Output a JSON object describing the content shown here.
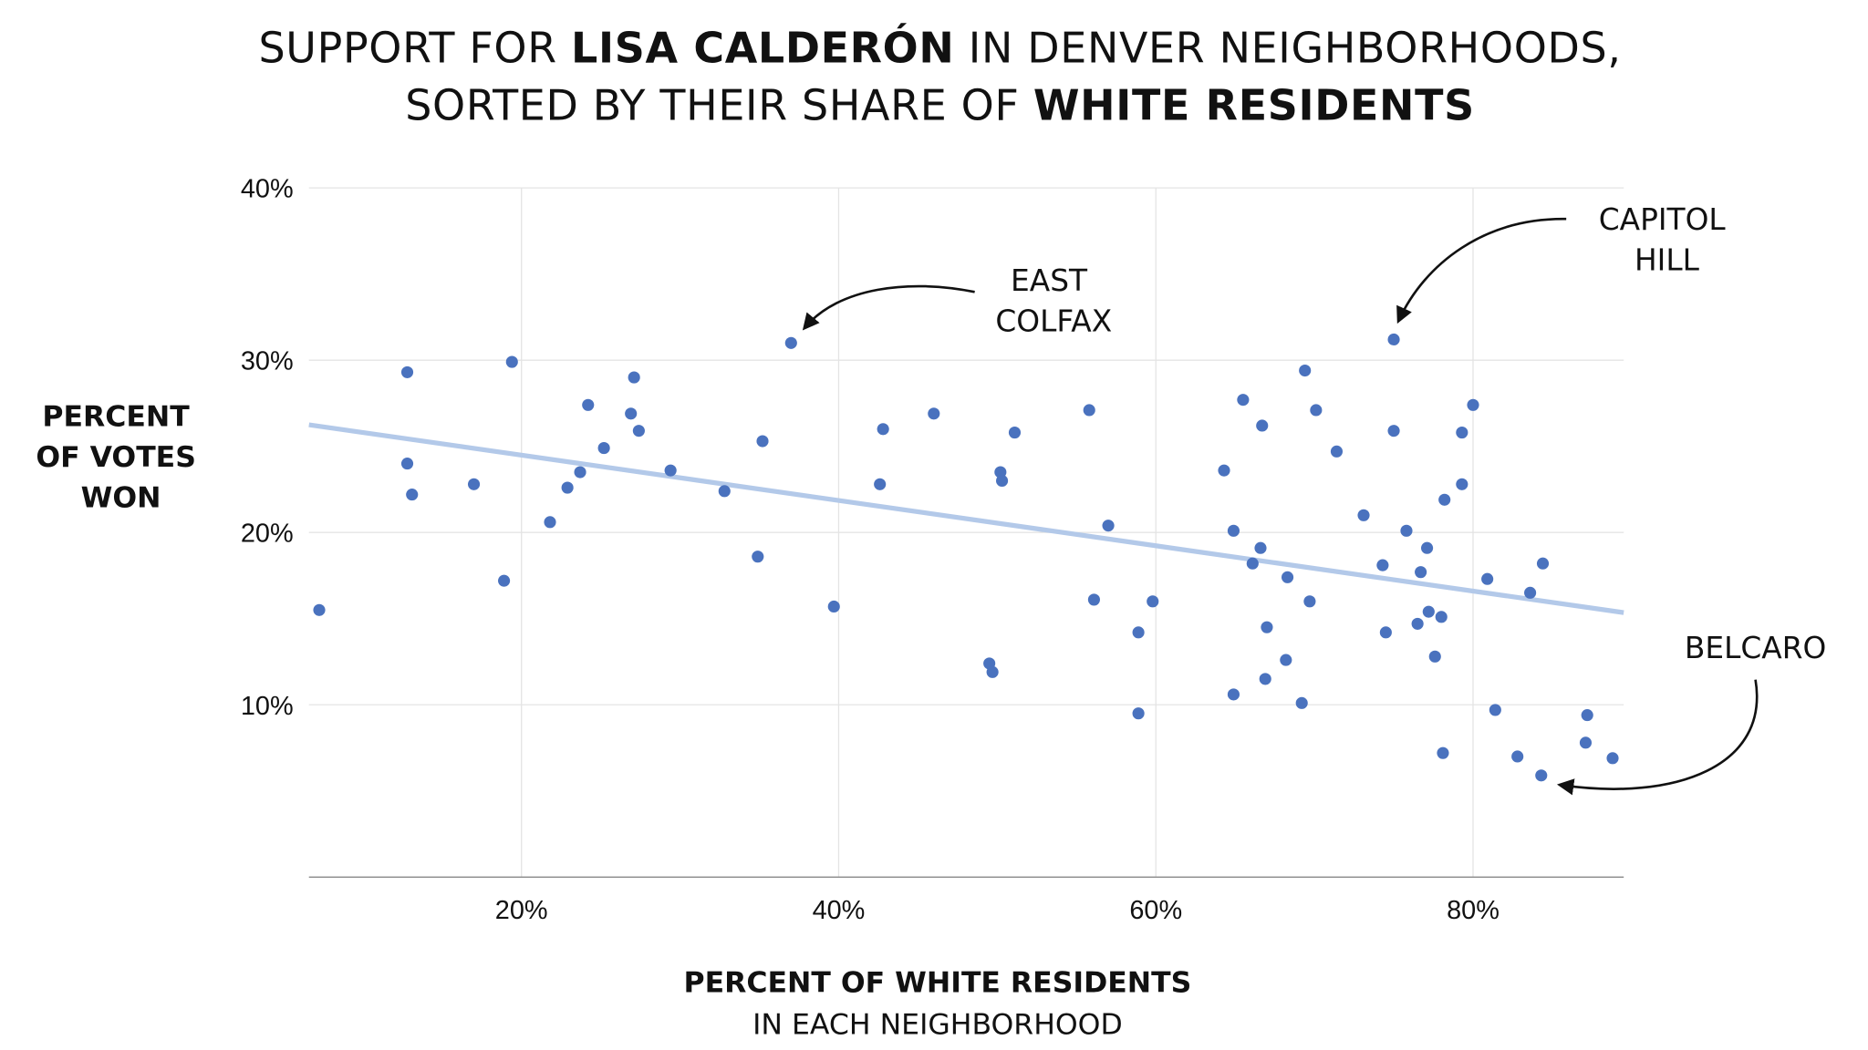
{
  "title": {
    "line1_a": "SUPPORT FOR ",
    "line1_b": "LISA CALDERÓN",
    "line1_c": " IN DENVER NEIGHBORHOODS,",
    "line2_a": "SORTED BY THEIR SHARE OF ",
    "line2_b": "WHITE RESIDENTS"
  },
  "colors": {
    "points": "#4a72be",
    "trendline": "#b3c9e9",
    "text": "#111111",
    "grid": "#e4e4e4"
  },
  "chart_data": {
    "type": "scatter",
    "title": "SUPPORT FOR LISA CALDERÓN IN DENVER NEIGHBORHOODS, SORTED BY THEIR SHARE OF WHITE RESIDENTS",
    "xlabel_line1": "PERCENT OF WHITE RESIDENTS",
    "xlabel_line2": "IN EACH NEIGHBORHOOD",
    "ylabel_lines": [
      "PERCENT",
      "OF VOTES",
      "WON"
    ],
    "xlim": [
      6.6,
      89.5
    ],
    "ylim": [
      0,
      40
    ],
    "xticks": [
      {
        "v": 20,
        "label": "20%"
      },
      {
        "v": 40,
        "label": "40%"
      },
      {
        "v": 60,
        "label": "60%"
      },
      {
        "v": 80,
        "label": "80%"
      }
    ],
    "yticks": [
      {
        "v": 10,
        "label": "10%"
      },
      {
        "v": 20,
        "label": "20%"
      },
      {
        "v": 30,
        "label": "30%"
      },
      {
        "v": 40,
        "label": "40%"
      }
    ],
    "grid": true,
    "trendline": {
      "x": [
        6.6,
        89.5
      ],
      "y": [
        26.25,
        15.35
      ]
    },
    "annotations": [
      {
        "lines": [
          "EAST",
          "COLFAX"
        ],
        "x": 37.0,
        "y": 31.0
      },
      {
        "lines": [
          "CAPITOL",
          "HILL"
        ],
        "x": 75.0,
        "y": 31.2
      },
      {
        "lines": [
          "BELCARO"
        ],
        "x": 84.3,
        "y": 5.9
      }
    ],
    "points": [
      [
        7.25,
        15.5
      ],
      [
        12.8,
        29.3
      ],
      [
        12.8,
        24.0
      ],
      [
        13.1,
        22.2
      ],
      [
        17.0,
        22.8
      ],
      [
        18.9,
        17.2
      ],
      [
        19.4,
        29.9
      ],
      [
        21.8,
        20.6
      ],
      [
        22.9,
        22.6
      ],
      [
        23.7,
        23.5
      ],
      [
        24.2,
        27.4
      ],
      [
        25.2,
        24.9
      ],
      [
        26.9,
        26.9
      ],
      [
        27.1,
        29.0
      ],
      [
        27.4,
        25.9
      ],
      [
        29.4,
        23.6
      ],
      [
        32.8,
        22.4
      ],
      [
        34.9,
        18.6
      ],
      [
        35.2,
        25.3
      ],
      [
        37.0,
        31.0
      ],
      [
        39.7,
        15.7
      ],
      [
        42.6,
        22.8
      ],
      [
        42.8,
        26.0
      ],
      [
        46.0,
        26.9
      ],
      [
        49.5,
        12.4
      ],
      [
        49.7,
        11.9
      ],
      [
        50.2,
        23.5
      ],
      [
        50.3,
        23.0
      ],
      [
        51.1,
        25.8
      ],
      [
        55.8,
        27.1
      ],
      [
        56.1,
        16.1
      ],
      [
        57.0,
        20.4
      ],
      [
        58.9,
        14.2
      ],
      [
        58.9,
        9.5
      ],
      [
        59.8,
        16.0
      ],
      [
        64.3,
        23.6
      ],
      [
        64.9,
        10.6
      ],
      [
        64.9,
        20.1
      ],
      [
        65.5,
        27.7
      ],
      [
        66.1,
        18.2
      ],
      [
        66.6,
        19.1
      ],
      [
        66.7,
        26.2
      ],
      [
        66.9,
        11.5
      ],
      [
        67.0,
        14.5
      ],
      [
        68.2,
        12.6
      ],
      [
        68.3,
        17.4
      ],
      [
        69.2,
        10.1
      ],
      [
        69.4,
        29.4
      ],
      [
        69.7,
        16.0
      ],
      [
        70.1,
        27.1
      ],
      [
        71.4,
        24.7
      ],
      [
        73.1,
        21.0
      ],
      [
        74.3,
        18.1
      ],
      [
        74.5,
        14.2
      ],
      [
        75.0,
        31.2
      ],
      [
        75.0,
        25.9
      ],
      [
        75.8,
        20.1
      ],
      [
        76.5,
        14.7
      ],
      [
        76.7,
        17.7
      ],
      [
        77.1,
        19.1
      ],
      [
        77.2,
        15.4
      ],
      [
        77.6,
        12.8
      ],
      [
        78.0,
        15.1
      ],
      [
        78.1,
        7.2
      ],
      [
        78.2,
        21.9
      ],
      [
        79.3,
        25.8
      ],
      [
        79.3,
        22.8
      ],
      [
        80.0,
        27.4
      ],
      [
        80.9,
        17.3
      ],
      [
        81.4,
        9.7
      ],
      [
        82.8,
        7.0
      ],
      [
        83.6,
        16.5
      ],
      [
        84.3,
        5.9
      ],
      [
        84.4,
        18.2
      ],
      [
        87.2,
        9.4
      ],
      [
        87.1,
        7.8
      ],
      [
        88.8,
        6.9
      ]
    ]
  }
}
